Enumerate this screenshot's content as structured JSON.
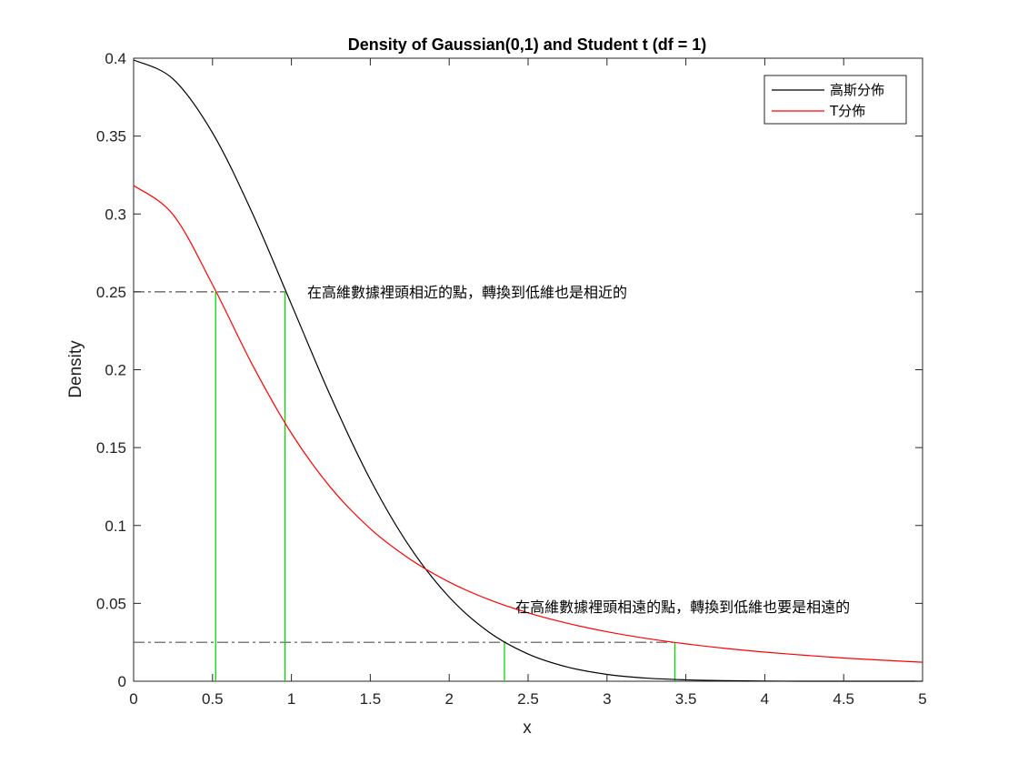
{
  "chart_data": {
    "type": "line",
    "title": "Density of Gaussian(0,1) and Student t (df = 1)",
    "xlabel": "x",
    "ylabel": "Density",
    "xlim": [
      0,
      5
    ],
    "ylim": [
      0,
      0.4
    ],
    "xticks": [
      "0",
      "0.5",
      "1",
      "1.5",
      "2",
      "2.5",
      "3",
      "3.5",
      "4",
      "4.5",
      "5"
    ],
    "yticks": [
      "0",
      "0.05",
      "0.1",
      "0.15",
      "0.2",
      "0.25",
      "0.3",
      "0.35",
      "0.4"
    ],
    "grid": false,
    "legend_position": "top-right",
    "series": [
      {
        "name": "高斯分佈",
        "color": "#000000",
        "x": [
          0,
          0.25,
          0.5,
          0.75,
          1,
          1.25,
          1.5,
          1.75,
          2,
          2.25,
          2.5,
          2.75,
          3,
          3.25,
          3.5,
          3.75,
          4,
          4.25,
          4.5,
          4.75,
          5
        ],
        "values": [
          0.3989,
          0.3867,
          0.3521,
          0.3011,
          0.242,
          0.1826,
          0.1295,
          0.0863,
          0.054,
          0.0317,
          0.0175,
          0.0091,
          0.0044,
          0.002,
          0.0009,
          0.0004,
          0.0001,
          0.0,
          0.0,
          0.0,
          0.0
        ]
      },
      {
        "name": "T分佈",
        "color": "#ff0000",
        "x": [
          0,
          0.25,
          0.5,
          0.75,
          1,
          1.25,
          1.5,
          1.75,
          2,
          2.25,
          2.5,
          2.75,
          3,
          3.25,
          3.5,
          3.75,
          4,
          4.25,
          4.5,
          4.75,
          5
        ],
        "values": [
          0.3183,
          0.2996,
          0.2546,
          0.2037,
          0.1592,
          0.1242,
          0.0979,
          0.0785,
          0.0637,
          0.0525,
          0.0439,
          0.0372,
          0.0318,
          0.0275,
          0.024,
          0.0211,
          0.0187,
          0.0167,
          0.0149,
          0.0135,
          0.0122
        ]
      }
    ],
    "reference_lines": [
      {
        "y": 0.25,
        "x_from": 0,
        "x_to": 0.96,
        "color": "#555555",
        "style": "dash-dot"
      },
      {
        "y": 0.025,
        "x_from": 0,
        "x_to": 3.43,
        "color": "#555555",
        "style": "dash-dot"
      }
    ],
    "vertical_markers": [
      {
        "x": 0.52,
        "y": 0.25,
        "color": "#00dd00"
      },
      {
        "x": 0.96,
        "y": 0.25,
        "color": "#00dd00"
      },
      {
        "x": 2.35,
        "y": 0.025,
        "color": "#00dd00"
      },
      {
        "x": 3.43,
        "y": 0.025,
        "color": "#00dd00"
      }
    ],
    "annotations": [
      {
        "text": "在高維數據裡頭相近的點，轉換到低維也是相近的",
        "x": 1.1,
        "y": 0.25
      },
      {
        "text": "在高維數據裡頭相遠的點，轉換到低維也要是相遠的",
        "x": 2.42,
        "y": 0.048
      }
    ]
  }
}
